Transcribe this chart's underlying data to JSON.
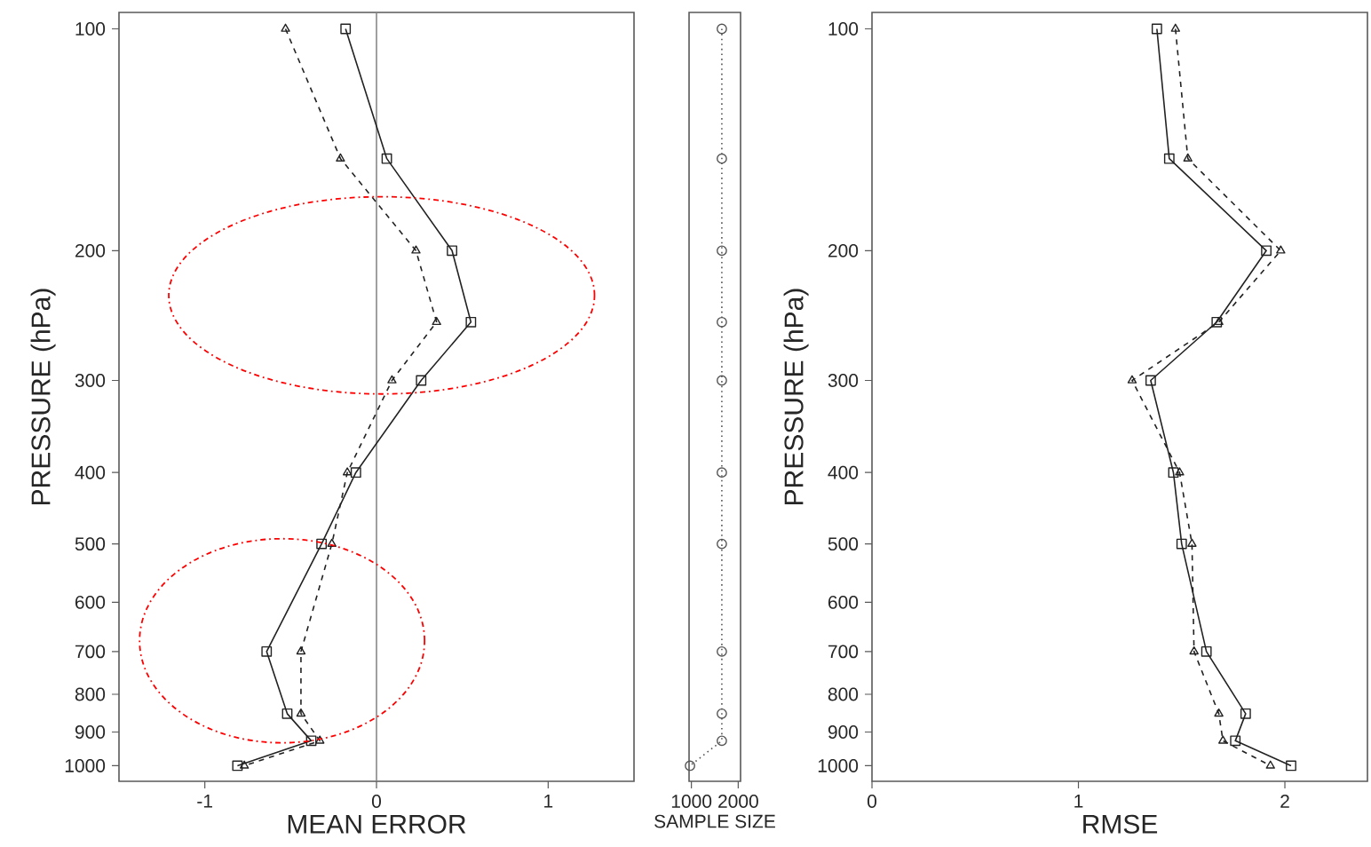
{
  "chart_data": [
    {
      "type": "line",
      "xlabel": "MEAN ERROR",
      "ylabel": "PRESSURE (hPa)",
      "log": "y",
      "xlim": [
        -1.5,
        1.5
      ],
      "xticks": [
        -1,
        0,
        1
      ],
      "ylim": [
        1050,
        95
      ],
      "yticks": [
        100,
        200,
        300,
        400,
        500,
        600,
        700,
        800,
        900,
        1000
      ],
      "series": [
        {
          "color": "#222222",
          "marker": "square",
          "line_style": "solid",
          "x": [
            -0.18,
            0.06,
            0.44,
            0.55,
            0.26,
            -0.12,
            -0.32,
            -0.64,
            -0.52,
            -0.38,
            -0.81
          ],
          "values": [
            100,
            150,
            200,
            250,
            300,
            400,
            500,
            700,
            850,
            925,
            1000
          ]
        },
        {
          "color": "#222222",
          "marker": "triangle",
          "line_style": "dashed",
          "x": [
            -0.53,
            -0.21,
            0.23,
            0.35,
            0.09,
            -0.17,
            -0.26,
            -0.44,
            -0.44,
            -0.33,
            -0.77
          ],
          "values": [
            100,
            150,
            200,
            250,
            300,
            400,
            500,
            700,
            850,
            925,
            1000
          ]
        }
      ],
      "ref_lines": [
        {
          "axis": "x",
          "value": 0,
          "color": "#888888"
        }
      ]
    },
    {
      "type": "line",
      "xlabel": "SAMPLE SIZE",
      "log": "y",
      "xlim": [
        950,
        2050
      ],
      "xticks": [
        1000,
        2000
      ],
      "ylim": [
        1050,
        95
      ],
      "tick_labels": "x",
      "series": [
        {
          "color": "#555555",
          "marker": "circle",
          "line_style": "dotted",
          "x": [
            1650,
            1650,
            1650,
            1650,
            1650,
            1650,
            1650,
            1650,
            1650,
            1650,
            970
          ],
          "values": [
            100,
            150,
            200,
            250,
            300,
            400,
            500,
            700,
            850,
            925,
            1000
          ]
        }
      ]
    },
    {
      "type": "line",
      "xlabel": "RMSE",
      "ylabel": "PRESSURE (hPa)",
      "log": "y",
      "xlim": [
        0,
        2.4
      ],
      "xticks": [
        0,
        1,
        2
      ],
      "ylim": [
        1050,
        95
      ],
      "yticks": [
        100,
        200,
        300,
        400,
        500,
        600,
        700,
        800,
        900,
        1000
      ],
      "series": [
        {
          "color": "#222222",
          "marker": "square",
          "line_style": "solid",
          "x": [
            1.38,
            1.44,
            1.91,
            1.67,
            1.35,
            1.46,
            1.5,
            1.62,
            1.81,
            1.76,
            2.03
          ],
          "values": [
            100,
            150,
            200,
            250,
            300,
            400,
            500,
            700,
            850,
            925,
            1000
          ]
        },
        {
          "color": "#222222",
          "marker": "triangle",
          "line_style": "dashed",
          "x": [
            1.47,
            1.53,
            1.98,
            1.68,
            1.26,
            1.49,
            1.55,
            1.56,
            1.68,
            1.7,
            1.93
          ],
          "values": [
            100,
            150,
            200,
            250,
            300,
            400,
            500,
            700,
            850,
            925,
            1000
          ]
        }
      ]
    }
  ]
}
